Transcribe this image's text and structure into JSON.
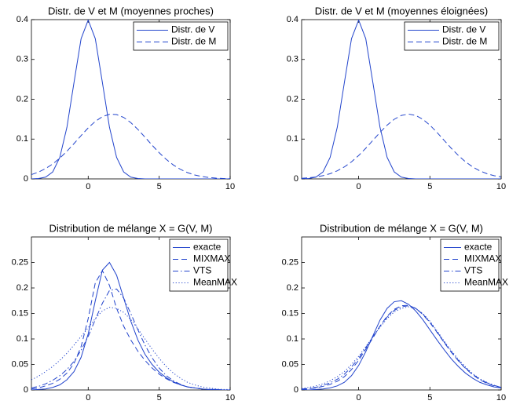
{
  "chart_data": [
    {
      "type": "line",
      "title": "Distr. de V et M (moyennes proches)",
      "x": [
        -4,
        -3.5,
        -3,
        -2.5,
        -2,
        -1.5,
        -1,
        -0.5,
        0,
        0.5,
        1,
        1.5,
        2,
        2.5,
        3,
        3.5,
        4,
        4.5,
        5,
        5.5,
        6,
        6.5,
        7,
        7.5,
        8,
        8.5,
        9,
        9.5,
        10
      ],
      "xlim": [
        -4,
        10
      ],
      "xticks": [
        0,
        5,
        10
      ],
      "ylim": [
        0,
        0.4
      ],
      "yticks": [
        0,
        0.1,
        0.2,
        0.3,
        0.4
      ],
      "legend": "upper right",
      "series": [
        {
          "name": "Distr. de V",
          "color": "#2244cc",
          "dash": "solid",
          "values": [
            0.0001,
            0.0009,
            0.0044,
            0.0175,
            0.054,
            0.1295,
            0.242,
            0.3521,
            0.3989,
            0.3521,
            0.242,
            0.1295,
            0.054,
            0.0175,
            0.0044,
            0.0009,
            0.0001,
            0,
            0,
            0,
            0,
            0,
            0,
            0,
            0,
            0,
            0,
            0,
            0
          ]
        },
        {
          "name": "Distr. de M",
          "color": "#2244cc",
          "dash": "dashed",
          "values": [
            0.0109,
            0.0171,
            0.0259,
            0.0375,
            0.0521,
            0.0694,
            0.0887,
            0.1088,
            0.128,
            0.1444,
            0.1563,
            0.1623,
            0.1616,
            0.1544,
            0.1414,
            0.1243,
            0.1048,
            0.0847,
            0.0657,
            0.0489,
            0.0349,
            0.0239,
            0.0157,
            0.0099,
            0.006,
            0.0035,
            0.0019,
            0.001,
            0.0005
          ]
        }
      ]
    },
    {
      "type": "line",
      "title": "Distr. de V et M (moyennes éloignées)",
      "x": [
        -4,
        -3.5,
        -3,
        -2.5,
        -2,
        -1.5,
        -1,
        -0.5,
        0,
        0.5,
        1,
        1.5,
        2,
        2.5,
        3,
        3.5,
        4,
        4.5,
        5,
        5.5,
        6,
        6.5,
        7,
        7.5,
        8,
        8.5,
        9,
        9.5,
        10
      ],
      "xlim": [
        -4,
        10
      ],
      "xticks": [
        0,
        5,
        10
      ],
      "ylim": [
        0,
        0.4
      ],
      "yticks": [
        0,
        0.1,
        0.2,
        0.3,
        0.4
      ],
      "legend": "upper right",
      "series": [
        {
          "name": "Distr. de V",
          "color": "#2244cc",
          "dash": "solid",
          "values": [
            0.0001,
            0.0009,
            0.0044,
            0.0175,
            0.054,
            0.1295,
            0.242,
            0.3521,
            0.3989,
            0.3521,
            0.242,
            0.1295,
            0.054,
            0.0175,
            0.0044,
            0.0009,
            0.0001,
            0,
            0,
            0,
            0,
            0,
            0,
            0,
            0,
            0,
            0,
            0,
            0
          ]
        },
        {
          "name": "Distr. de M",
          "color": "#2244cc",
          "dash": "dashed",
          "values": [
            0.0015,
            0.0027,
            0.0048,
            0.0081,
            0.0131,
            0.0203,
            0.0301,
            0.0429,
            0.0587,
            0.0769,
            0.0967,
            0.1167,
            0.135,
            0.1498,
            0.1594,
            0.1628,
            0.1594,
            0.1498,
            0.135,
            0.1167,
            0.0967,
            0.0769,
            0.0587,
            0.0429,
            0.0301,
            0.0203,
            0.0131,
            0.0081,
            0.0048
          ]
        }
      ]
    },
    {
      "type": "line",
      "title": "Distribution de mélange X = G(V, M)",
      "x": [
        -4,
        -3.5,
        -3,
        -2.5,
        -2,
        -1.5,
        -1,
        -0.5,
        0,
        0.5,
        1,
        1.5,
        2,
        2.5,
        3,
        3.5,
        4,
        4.5,
        5,
        5.5,
        6,
        6.5,
        7,
        7.5,
        8,
        8.5,
        9,
        9.5,
        10
      ],
      "xlim": [
        -4,
        10
      ],
      "xticks": [
        0,
        5,
        10
      ],
      "ylim": [
        0,
        0.3
      ],
      "yticks": [
        0,
        0.05,
        0.1,
        0.15,
        0.2,
        0.25
      ],
      "legend": "upper right",
      "series": [
        {
          "name": "exacte",
          "color": "#2244cc",
          "dash": "solid",
          "values": [
            0,
            0.001,
            0.002,
            0.005,
            0.01,
            0.02,
            0.036,
            0.064,
            0.11,
            0.175,
            0.235,
            0.25,
            0.225,
            0.18,
            0.135,
            0.098,
            0.07,
            0.05,
            0.035,
            0.024,
            0.016,
            0.01,
            0.006,
            0.004,
            0.002,
            0.001,
            0.001,
            0,
            0
          ]
        },
        {
          "name": "MIXMAX",
          "color": "#2244cc",
          "dash": "dashed",
          "values": [
            0.002,
            0.004,
            0.008,
            0.013,
            0.021,
            0.033,
            0.052,
            0.085,
            0.14,
            0.21,
            0.234,
            0.205,
            0.16,
            0.125,
            0.098,
            0.076,
            0.058,
            0.043,
            0.031,
            0.022,
            0.015,
            0.01,
            0.006,
            0.004,
            0.002,
            0.001,
            0.001,
            0,
            0
          ]
        },
        {
          "name": "VTS",
          "color": "#2244cc",
          "dash": "dashdot",
          "values": [
            0.004,
            0.007,
            0.012,
            0.019,
            0.028,
            0.04,
            0.056,
            0.078,
            0.105,
            0.138,
            0.17,
            0.195,
            0.198,
            0.18,
            0.15,
            0.118,
            0.088,
            0.063,
            0.043,
            0.028,
            0.018,
            0.011,
            0.006,
            0.004,
            0.002,
            0.001,
            0.001,
            0,
            0
          ]
        },
        {
          "name": "MeanMAX",
          "color": "#2244cc",
          "dash": "dotted",
          "values": [
            0.02,
            0.027,
            0.036,
            0.046,
            0.058,
            0.072,
            0.088,
            0.105,
            0.122,
            0.14,
            0.155,
            0.162,
            0.16,
            0.152,
            0.138,
            0.12,
            0.1,
            0.08,
            0.062,
            0.046,
            0.033,
            0.023,
            0.015,
            0.01,
            0.006,
            0.004,
            0.002,
            0.001,
            0.001
          ]
        }
      ]
    },
    {
      "type": "line",
      "title": "Distribution de mélange X = G(V, M)",
      "x": [
        -4,
        -3.5,
        -3,
        -2.5,
        -2,
        -1.5,
        -1,
        -0.5,
        0,
        0.5,
        1,
        1.5,
        2,
        2.5,
        3,
        3.5,
        4,
        4.5,
        5,
        5.5,
        6,
        6.5,
        7,
        7.5,
        8,
        8.5,
        9,
        9.5,
        10
      ],
      "xlim": [
        -4,
        10
      ],
      "xticks": [
        0,
        5,
        10
      ],
      "ylim": [
        0,
        0.3
      ],
      "yticks": [
        0,
        0.05,
        0.1,
        0.15,
        0.2,
        0.25
      ],
      "legend": "upper right",
      "series": [
        {
          "name": "exacte",
          "color": "#2244cc",
          "dash": "solid",
          "values": [
            0,
            0,
            0.001,
            0.002,
            0.004,
            0.008,
            0.015,
            0.028,
            0.048,
            0.075,
            0.106,
            0.137,
            0.16,
            0.173,
            0.175,
            0.168,
            0.155,
            0.138,
            0.118,
            0.098,
            0.079,
            0.061,
            0.046,
            0.033,
            0.023,
            0.015,
            0.01,
            0.006,
            0.004
          ]
        },
        {
          "name": "MIXMAX",
          "color": "#2244cc",
          "dash": "dashed",
          "values": [
            0.001,
            0.002,
            0.004,
            0.007,
            0.011,
            0.017,
            0.026,
            0.04,
            0.058,
            0.08,
            0.102,
            0.125,
            0.145,
            0.158,
            0.165,
            0.166,
            0.16,
            0.148,
            0.132,
            0.113,
            0.093,
            0.074,
            0.057,
            0.042,
            0.03,
            0.02,
            0.013,
            0.008,
            0.005
          ]
        },
        {
          "name": "VTS",
          "color": "#2244cc",
          "dash": "dashdot",
          "values": [
            0.002,
            0.003,
            0.005,
            0.009,
            0.014,
            0.021,
            0.031,
            0.045,
            0.062,
            0.083,
            0.104,
            0.125,
            0.143,
            0.156,
            0.163,
            0.165,
            0.16,
            0.149,
            0.133,
            0.114,
            0.094,
            0.075,
            0.058,
            0.043,
            0.031,
            0.021,
            0.014,
            0.009,
            0.005
          ]
        },
        {
          "name": "MeanMAX",
          "color": "#2244cc",
          "dash": "dotted",
          "values": [
            0.003,
            0.005,
            0.008,
            0.012,
            0.018,
            0.026,
            0.036,
            0.05,
            0.066,
            0.085,
            0.104,
            0.123,
            0.14,
            0.153,
            0.16,
            0.163,
            0.16,
            0.15,
            0.135,
            0.116,
            0.096,
            0.077,
            0.06,
            0.045,
            0.032,
            0.022,
            0.015,
            0.009,
            0.005
          ]
        }
      ]
    }
  ]
}
